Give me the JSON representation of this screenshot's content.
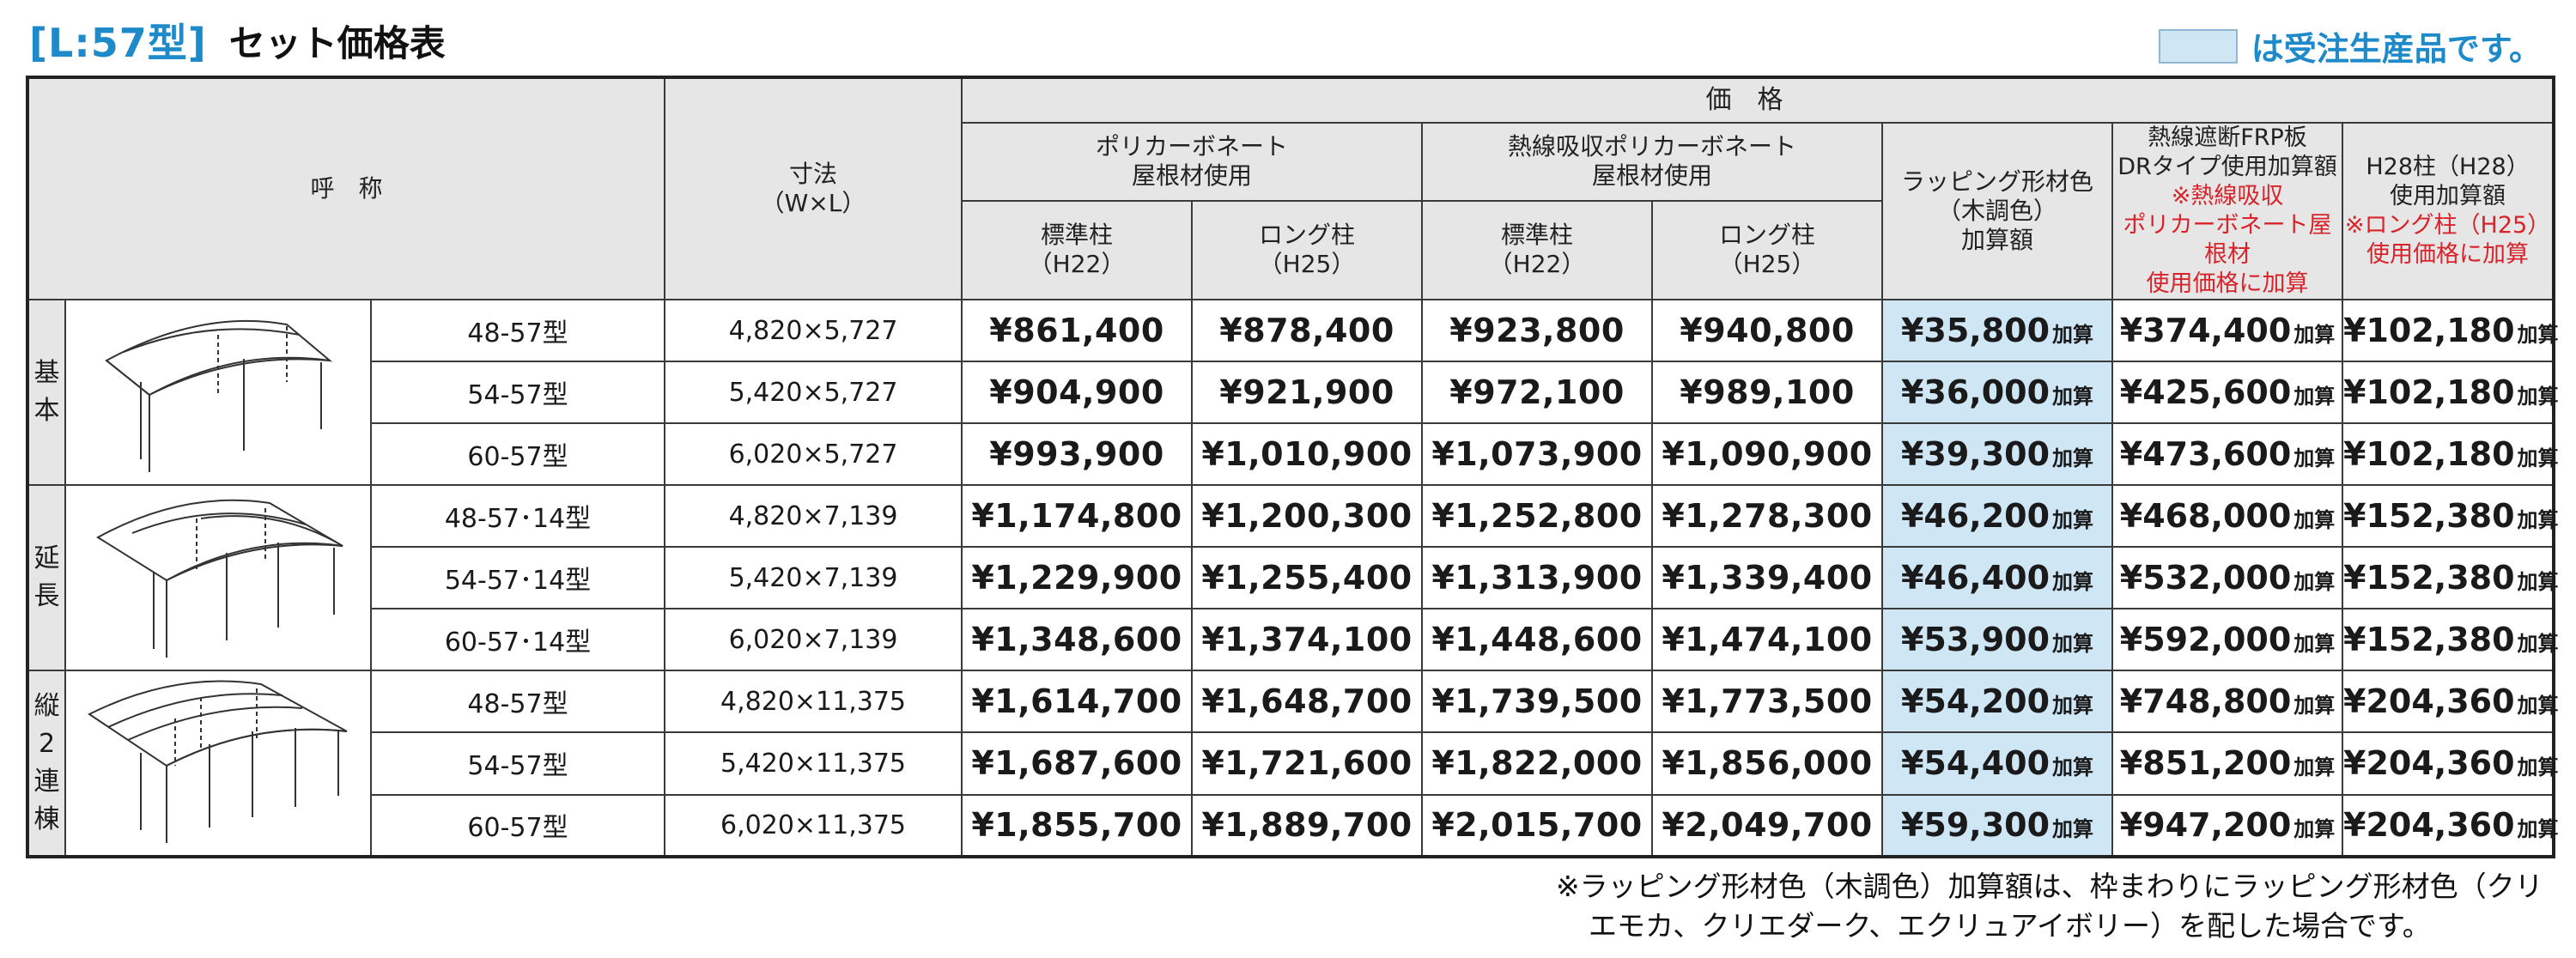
{
  "header": {
    "model_tag": "[L:57型]",
    "title": "セット価格表",
    "legend_text": "は受注生産品です。"
  },
  "colors": {
    "accent": "#1f8ac9",
    "highlight": "#cfe6f5",
    "header_bg": "#e6e6e6",
    "red": "#d8232a"
  },
  "table": {
    "col_name": "呼　称",
    "col_dim_1": "寸法",
    "col_dim_2": "（W×L）",
    "price_header": "価格",
    "poly_1": "ポリカーボネート",
    "poly_2": "屋根材使用",
    "heat_1": "熱線吸収ポリカーボネート",
    "heat_2": "屋根材使用",
    "std_1": "標準柱",
    "std_2": "（H22）",
    "long_1": "ロング柱",
    "long_2": "（H25）",
    "wrap_1": "ラッピング形材色",
    "wrap_2": "（木調色）",
    "wrap_3": "加算額",
    "frp_1": "熱線遮断FRP板",
    "frp_2": "DRタイプ使用加算額",
    "frp_3": "※熱線吸収",
    "frp_4": "ポリカーボネート屋根材",
    "frp_5": "使用価格に加算",
    "h28_1": "H28柱（H28）",
    "h28_2": "使用加算額",
    "h28_3": "※ロング柱（H25）",
    "h28_4": "使用価格に加算",
    "add_suffix": "加算"
  },
  "groups": [
    {
      "label": [
        "基",
        "本"
      ],
      "icon": "carport-basic-diagram",
      "rows": [
        {
          "name": "48-57型",
          "dim": "4,820×5,727",
          "p1": "¥861,400",
          "p2": "¥878,400",
          "p3": "¥923,800",
          "p4": "¥940,800",
          "wrap": "¥35,800",
          "frp": "¥374,400",
          "h28": "¥102,180"
        },
        {
          "name": "54-57型",
          "dim": "5,420×5,727",
          "p1": "¥904,900",
          "p2": "¥921,900",
          "p3": "¥972,100",
          "p4": "¥989,100",
          "wrap": "¥36,000",
          "frp": "¥425,600",
          "h28": "¥102,180"
        },
        {
          "name": "60-57型",
          "dim": "6,020×5,727",
          "p1": "¥993,900",
          "p2": "¥1,010,900",
          "p3": "¥1,073,900",
          "p4": "¥1,090,900",
          "wrap": "¥39,300",
          "frp": "¥473,600",
          "h28": "¥102,180"
        }
      ]
    },
    {
      "label": [
        "延",
        "長"
      ],
      "icon": "carport-extension-diagram",
      "rows": [
        {
          "name": "48-57･14型",
          "dim": "4,820×7,139",
          "p1": "¥1,174,800",
          "p2": "¥1,200,300",
          "p3": "¥1,252,800",
          "p4": "¥1,278,300",
          "wrap": "¥46,200",
          "frp": "¥468,000",
          "h28": "¥152,380"
        },
        {
          "name": "54-57･14型",
          "dim": "5,420×7,139",
          "p1": "¥1,229,900",
          "p2": "¥1,255,400",
          "p3": "¥1,313,900",
          "p4": "¥1,339,400",
          "wrap": "¥46,400",
          "frp": "¥532,000",
          "h28": "¥152,380"
        },
        {
          "name": "60-57･14型",
          "dim": "6,020×7,139",
          "p1": "¥1,348,600",
          "p2": "¥1,374,100",
          "p3": "¥1,448,600",
          "p4": "¥1,474,100",
          "wrap": "¥53,900",
          "frp": "¥592,000",
          "h28": "¥152,380"
        }
      ]
    },
    {
      "label": [
        "縦",
        "2",
        "連",
        "棟"
      ],
      "icon": "carport-double-diagram",
      "rows": [
        {
          "name": "48-57型",
          "dim": "4,820×11,375",
          "p1": "¥1,614,700",
          "p2": "¥1,648,700",
          "p3": "¥1,739,500",
          "p4": "¥1,773,500",
          "wrap": "¥54,200",
          "frp": "¥748,800",
          "h28": "¥204,360"
        },
        {
          "name": "54-57型",
          "dim": "5,420×11,375",
          "p1": "¥1,687,600",
          "p2": "¥1,721,600",
          "p3": "¥1,822,000",
          "p4": "¥1,856,000",
          "wrap": "¥54,400",
          "frp": "¥851,200",
          "h28": "¥204,360"
        },
        {
          "name": "60-57型",
          "dim": "6,020×11,375",
          "p1": "¥1,855,700",
          "p2": "¥1,889,700",
          "p3": "¥2,015,700",
          "p4": "¥2,049,700",
          "wrap": "¥59,300",
          "frp": "¥947,200",
          "h28": "¥204,360"
        }
      ]
    }
  ],
  "note": {
    "line1": "※ラッピング形材色（木調色）加算額は、枠まわりにラッピング形材色（クリ",
    "line2": "エモカ、クリエダーク、エクリュアイボリー）を配した場合です。"
  }
}
